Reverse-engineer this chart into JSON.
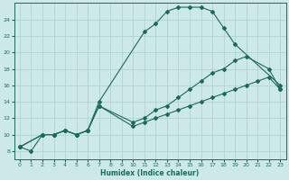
{
  "xlabel": "Humidex (Indice chaleur)",
  "bg_color": "#cde8e8",
  "grid_color": "#b0d4cc",
  "line_color": "#1a6b5a",
  "xlim": [
    -0.5,
    23.5
  ],
  "ylim": [
    7,
    26
  ],
  "xticks": [
    0,
    1,
    2,
    3,
    4,
    5,
    6,
    7,
    8,
    9,
    10,
    11,
    12,
    13,
    14,
    15,
    16,
    17,
    18,
    19,
    20,
    21,
    22,
    23
  ],
  "yticks": [
    8,
    10,
    12,
    14,
    16,
    18,
    20,
    22,
    24
  ],
  "s1x": [
    0,
    1,
    2,
    3,
    4,
    5,
    6,
    7,
    11,
    12,
    13,
    14,
    15,
    16,
    17,
    18,
    19,
    23
  ],
  "s1y": [
    8.5,
    8.0,
    10.0,
    10.0,
    10.5,
    10.0,
    10.5,
    14.0,
    22.5,
    23.5,
    25.0,
    25.5,
    25.5,
    25.5,
    25.0,
    23.0,
    21.0,
    16.0
  ],
  "s2x": [
    0,
    2,
    3,
    4,
    5,
    6,
    7,
    10,
    11,
    12,
    13,
    14,
    15,
    16,
    17,
    18,
    19,
    20,
    22,
    23
  ],
  "s2y": [
    8.5,
    10.0,
    10.0,
    10.5,
    10.0,
    10.5,
    13.5,
    11.5,
    12.0,
    13.0,
    13.5,
    14.5,
    15.5,
    16.5,
    17.5,
    18.0,
    19.0,
    19.5,
    18.0,
    15.5
  ],
  "s3x": [
    0,
    2,
    3,
    4,
    5,
    6,
    7,
    10,
    11,
    12,
    13,
    14,
    15,
    16,
    17,
    18,
    19,
    20,
    21,
    22,
    23
  ],
  "s3y": [
    8.5,
    10.0,
    10.0,
    10.5,
    10.0,
    10.5,
    13.5,
    11.0,
    11.5,
    12.0,
    12.5,
    13.0,
    13.5,
    14.0,
    14.5,
    15.0,
    15.5,
    16.0,
    16.5,
    17.0,
    15.5
  ]
}
